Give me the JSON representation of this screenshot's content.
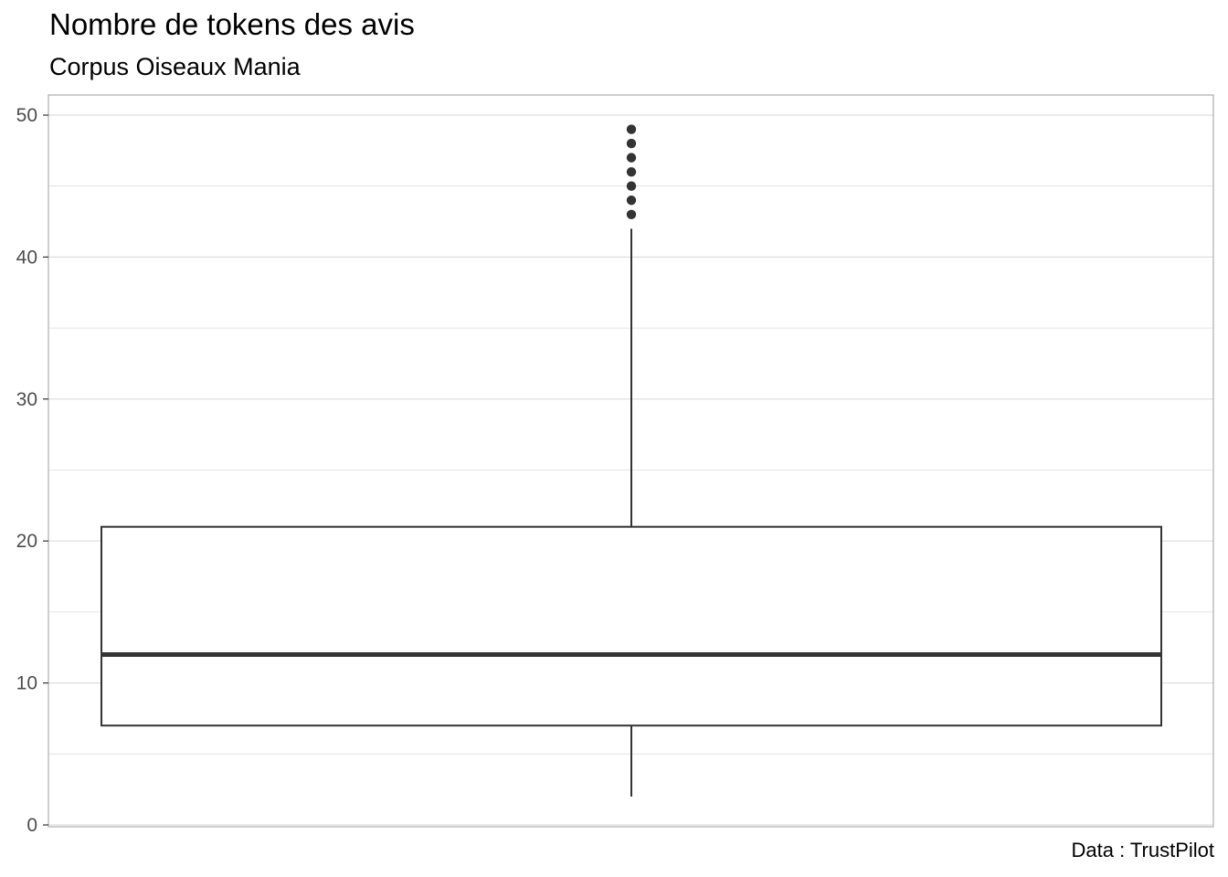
{
  "chart_data": {
    "type": "boxplot",
    "title": "Nombre de tokens des avis",
    "subtitle": "Corpus Oiseaux Mania",
    "caption": "Data : TrustPilot",
    "xlabel": "",
    "ylabel": "",
    "ylim": [
      0,
      50
    ],
    "y_ticks": [
      0,
      10,
      20,
      30,
      40,
      50
    ],
    "y_tick_labels": [
      "0",
      "10",
      "20",
      "30",
      "40",
      "50"
    ],
    "grid": true,
    "box": {
      "min": 2,
      "q1": 7,
      "median": 12,
      "q3": 21,
      "max": 42,
      "outliers": [
        43,
        44,
        45,
        46,
        47,
        48,
        49
      ]
    },
    "colors": {
      "box_line": "#333333",
      "outlier": "#333333",
      "grid": "#dedede",
      "panel_border": "#b3b3b3"
    }
  }
}
